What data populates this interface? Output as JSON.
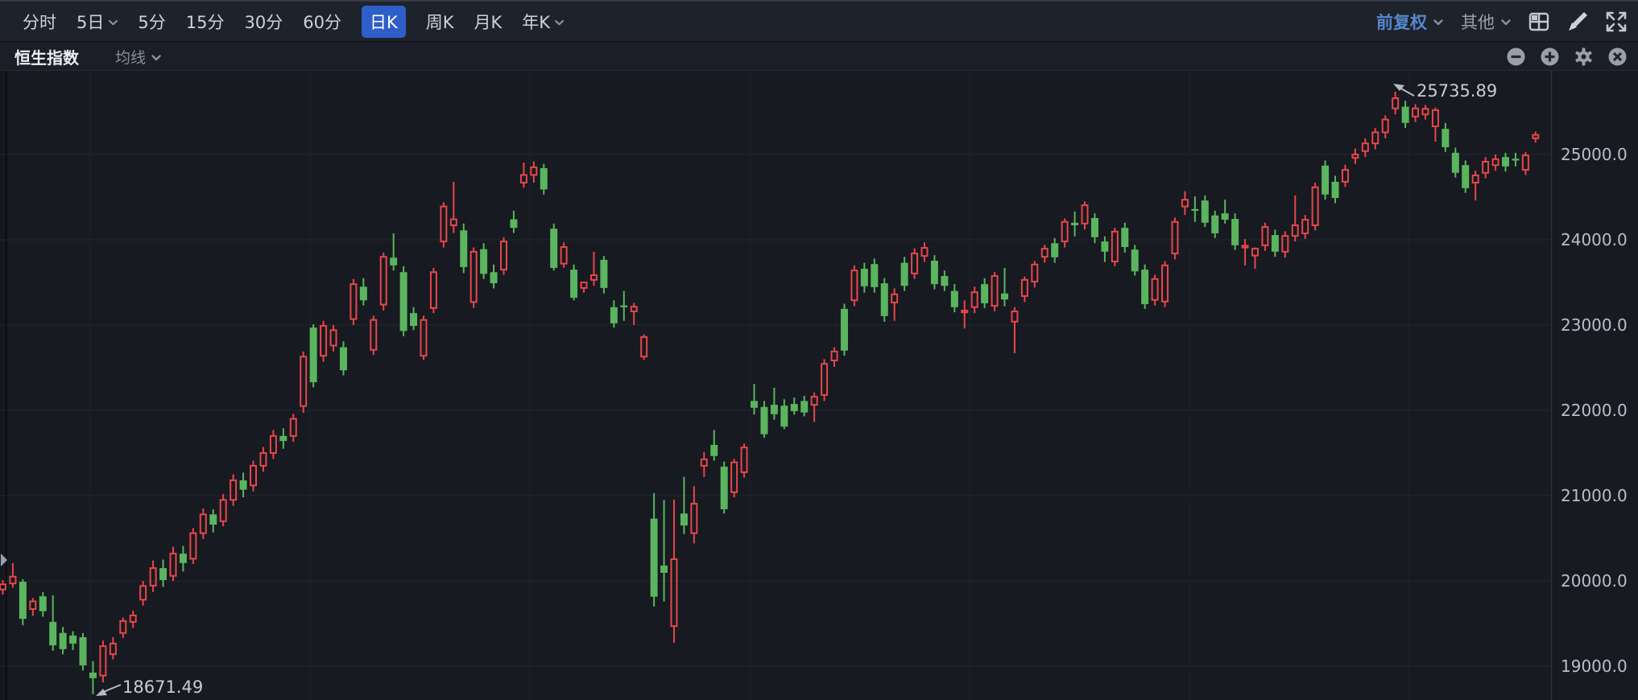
{
  "header": {
    "periods": [
      {
        "label": "分时",
        "active": false,
        "chevron": false
      },
      {
        "label": "5日",
        "active": false,
        "chevron": true
      },
      {
        "label": "5分",
        "active": false,
        "chevron": false
      },
      {
        "label": "15分",
        "active": false,
        "chevron": false
      },
      {
        "label": "30分",
        "active": false,
        "chevron": false
      },
      {
        "label": "60分",
        "active": false,
        "chevron": false
      },
      {
        "label": "日K",
        "active": true,
        "chevron": false
      },
      {
        "label": "周K",
        "active": false,
        "chevron": false
      },
      {
        "label": "月K",
        "active": false,
        "chevron": false
      },
      {
        "label": "年K",
        "active": false,
        "chevron": true
      }
    ],
    "adjust_label": "前复权",
    "other_label": "其他",
    "active_chip_color": "#2e5ec8",
    "adjust_label_color": "#5787cf"
  },
  "subheader": {
    "title": "恒生指数",
    "ma_label": "均线"
  },
  "annotations": {
    "high": "25735.89",
    "low": "18671.49"
  },
  "chart_data": {
    "type": "candlestick",
    "title": "恒生指数",
    "period": "日K",
    "adjustment": "前复权",
    "up_color": "#e8464a",
    "down_color": "#5ab55e",
    "grid": true,
    "y_axis": {
      "side": "right",
      "tick_labels": [
        "25000.0",
        "24000.0",
        "23000.0",
        "22000.0",
        "21000.0",
        "20000.0",
        "19000.0"
      ],
      "tick_values": [
        25000,
        24000,
        23000,
        22000,
        21000,
        20000,
        19000
      ],
      "visible_range": [
        18580,
        26050
      ]
    },
    "high_point": {
      "value": 25735.89,
      "label": "25735.89"
    },
    "low_point": {
      "value": 18671.49,
      "label": "18671.49"
    },
    "candles": [
      [
        19900,
        20010,
        19840,
        19960
      ],
      [
        19970,
        20210,
        19920,
        20050
      ],
      [
        19990,
        20020,
        19480,
        19555
      ],
      [
        19670,
        19800,
        19590,
        19760
      ],
      [
        19820,
        19870,
        19580,
        19645
      ],
      [
        19520,
        19830,
        19180,
        19245
      ],
      [
        19390,
        19460,
        19140,
        19200
      ],
      [
        19360,
        19410,
        19190,
        19265
      ],
      [
        19340,
        19390,
        18950,
        19010
      ],
      [
        18925,
        19060,
        18671.49,
        18860
      ],
      [
        18890,
        19300,
        18810,
        19235
      ],
      [
        19140,
        19340,
        19080,
        19265
      ],
      [
        19390,
        19570,
        19330,
        19530
      ],
      [
        19520,
        19650,
        19450,
        19595
      ],
      [
        19780,
        20000,
        19710,
        19940
      ],
      [
        19945,
        20240,
        19870,
        20150
      ],
      [
        20150,
        20250,
        19930,
        20010
      ],
      [
        20060,
        20400,
        20000,
        20320
      ],
      [
        20320,
        20410,
        20110,
        20210
      ],
      [
        20260,
        20620,
        20200,
        20560
      ],
      [
        20560,
        20850,
        20490,
        20780
      ],
      [
        20780,
        20840,
        20570,
        20660
      ],
      [
        20700,
        21020,
        20640,
        20950
      ],
      [
        20950,
        21250,
        20880,
        21180
      ],
      [
        21180,
        21270,
        20980,
        21070
      ],
      [
        21120,
        21410,
        21050,
        21350
      ],
      [
        21350,
        21570,
        21280,
        21500
      ],
      [
        21500,
        21770,
        21430,
        21700
      ],
      [
        21700,
        21790,
        21550,
        21640
      ],
      [
        21700,
        21960,
        21630,
        21900
      ],
      [
        22050,
        22690,
        21970,
        22630
      ],
      [
        22970,
        23010,
        22270,
        22330
      ],
      [
        22640,
        23050,
        22570,
        22990
      ],
      [
        22760,
        23000,
        22690,
        22940
      ],
      [
        22740,
        22810,
        22410,
        22470
      ],
      [
        23070,
        23540,
        23000,
        23480
      ],
      [
        23450,
        23550,
        23230,
        23290
      ],
      [
        22710,
        23110,
        22650,
        23060
      ],
      [
        23240,
        23850,
        23170,
        23800
      ],
      [
        23790,
        24075,
        23640,
        23700
      ],
      [
        23620,
        23690,
        22870,
        22930
      ],
      [
        23140,
        23210,
        22940,
        22990
      ],
      [
        22640,
        23110,
        22590,
        23060
      ],
      [
        23200,
        23670,
        23140,
        23620
      ],
      [
        23980,
        24440,
        23910,
        24390
      ],
      [
        24170,
        24680,
        24080,
        24240
      ],
      [
        24110,
        24190,
        23610,
        23680
      ],
      [
        23270,
        23910,
        23200,
        23860
      ],
      [
        23890,
        23960,
        23540,
        23600
      ],
      [
        23620,
        23710,
        23430,
        23490
      ],
      [
        23650,
        24030,
        23590,
        23980
      ],
      [
        24240,
        24340,
        24080,
        24140
      ],
      [
        24670,
        24905,
        24610,
        24760
      ],
      [
        24760,
        24920,
        24670,
        24850
      ],
      [
        24840,
        24890,
        24530,
        24590
      ],
      [
        24130,
        24190,
        23640,
        23670
      ],
      [
        23720,
        23970,
        23670,
        23915
      ],
      [
        23650,
        23710,
        23290,
        23320
      ],
      [
        23435,
        23510,
        23380,
        23500
      ],
      [
        23530,
        23860,
        23460,
        23585
      ],
      [
        23765,
        23810,
        23370,
        23435
      ],
      [
        23210,
        23290,
        22970,
        23020
      ],
      [
        23230,
        23400,
        23050,
        23225
      ],
      [
        23160,
        23260,
        23000,
        23215
      ],
      [
        22630,
        22890,
        22590,
        22860
      ],
      [
        20730,
        21030,
        19700,
        19815
      ],
      [
        20180,
        20950,
        19760,
        20095
      ],
      [
        19470,
        20953,
        19274,
        20255
      ],
      [
        20790,
        21220,
        20550,
        20650
      ],
      [
        20560,
        21110,
        20440,
        20905
      ],
      [
        21350,
        21510,
        21220,
        21425
      ],
      [
        21595,
        21770,
        21410,
        21465
      ],
      [
        21340,
        21400,
        20790,
        20840
      ],
      [
        21040,
        21430,
        20980,
        21390
      ],
      [
        21275,
        21610,
        21210,
        21565
      ],
      [
        22110,
        22310,
        21950,
        22030
      ],
      [
        22040,
        22110,
        21680,
        21720
      ],
      [
        22065,
        22265,
        21890,
        21955
      ],
      [
        22055,
        22130,
        21780,
        21810
      ],
      [
        22075,
        22150,
        21950,
        21990
      ],
      [
        22110,
        22170,
        21930,
        21975
      ],
      [
        22065,
        22210,
        21865,
        22160
      ],
      [
        22180,
        22600,
        22110,
        22545
      ],
      [
        22585,
        22740,
        22510,
        22690
      ],
      [
        23190,
        23250,
        22640,
        22700
      ],
      [
        23290,
        23700,
        23220,
        23640
      ],
      [
        23660,
        23730,
        23380,
        23455
      ],
      [
        23715,
        23780,
        23380,
        23445
      ],
      [
        23490,
        23550,
        23040,
        23105
      ],
      [
        23265,
        23430,
        23050,
        23360
      ],
      [
        23730,
        23800,
        23400,
        23460
      ],
      [
        23605,
        23900,
        23540,
        23840
      ],
      [
        23810,
        23970,
        23740,
        23905
      ],
      [
        23755,
        23820,
        23420,
        23480
      ],
      [
        23575,
        23640,
        23400,
        23460
      ],
      [
        23400,
        23480,
        23150,
        23210
      ],
      [
        23160,
        23290,
        22960,
        23170
      ],
      [
        23210,
        23450,
        23140,
        23385
      ],
      [
        23480,
        23550,
        23200,
        23255
      ],
      [
        23225,
        23620,
        23160,
        23575
      ],
      [
        23370,
        23670,
        23220,
        23300
      ],
      [
        23040,
        23210,
        22670,
        23160
      ],
      [
        23340,
        23570,
        23270,
        23530
      ],
      [
        23510,
        23750,
        23440,
        23710
      ],
      [
        23800,
        23940,
        23730,
        23895
      ],
      [
        23960,
        24020,
        23730,
        23795
      ],
      [
        23980,
        24250,
        23910,
        24210
      ],
      [
        24200,
        24330,
        24040,
        24170
      ],
      [
        24190,
        24450,
        24120,
        24405
      ],
      [
        24255,
        24310,
        23960,
        24030
      ],
      [
        23980,
        24040,
        23740,
        23860
      ],
      [
        23745,
        24140,
        23690,
        24095
      ],
      [
        24140,
        24200,
        23850,
        23915
      ],
      [
        23885,
        23940,
        23580,
        23630
      ],
      [
        23650,
        23710,
        23190,
        23245
      ],
      [
        23295,
        23590,
        23230,
        23540
      ],
      [
        23275,
        23750,
        23210,
        23700
      ],
      [
        23840,
        24260,
        23770,
        24210
      ],
      [
        24390,
        24570,
        24290,
        24470
      ],
      [
        24360,
        24510,
        24210,
        24355
      ],
      [
        24460,
        24520,
        24150,
        24200
      ],
      [
        24285,
        24340,
        24020,
        24075
      ],
      [
        24310,
        24470,
        24190,
        24235
      ],
      [
        24245,
        24310,
        23880,
        23935
      ],
      [
        23925,
        24010,
        23700,
        23930
      ],
      [
        23815,
        23910,
        23660,
        23895
      ],
      [
        23935,
        24200,
        23870,
        24150
      ],
      [
        24055,
        24120,
        23800,
        23860
      ],
      [
        23860,
        24100,
        23790,
        24045
      ],
      [
        24045,
        24520,
        23980,
        24170
      ],
      [
        24075,
        24290,
        24010,
        24235
      ],
      [
        24170,
        24670,
        24110,
        24615
      ],
      [
        24870,
        24930,
        24470,
        24530
      ],
      [
        24680,
        24750,
        24430,
        24490
      ],
      [
        24680,
        24880,
        24620,
        24820
      ],
      [
        24960,
        25070,
        24890,
        25000
      ],
      [
        25040,
        25190,
        24970,
        25130
      ],
      [
        25130,
        25310,
        25060,
        25260
      ],
      [
        25260,
        25460,
        25190,
        25410
      ],
      [
        25540,
        25735.89,
        25470,
        25660
      ],
      [
        25560,
        25630,
        25310,
        25370
      ],
      [
        25445,
        25590,
        25380,
        25540
      ],
      [
        25470,
        25580,
        25410,
        25535
      ],
      [
        25330,
        25550,
        25150,
        25520
      ],
      [
        25300,
        25370,
        25030,
        25085
      ],
      [
        25020,
        25080,
        24730,
        24785
      ],
      [
        24875,
        24930,
        24550,
        24605
      ],
      [
        24670,
        24810,
        24460,
        24755
      ],
      [
        24785,
        24970,
        24720,
        24915
      ],
      [
        24875,
        25000,
        24810,
        24945
      ],
      [
        24970,
        25020,
        24800,
        24860
      ],
      [
        24950,
        25020,
        24860,
        24945
      ],
      [
        24820,
        25030,
        24760,
        24990
      ],
      [
        25190,
        25270,
        25140,
        25230
      ]
    ]
  }
}
